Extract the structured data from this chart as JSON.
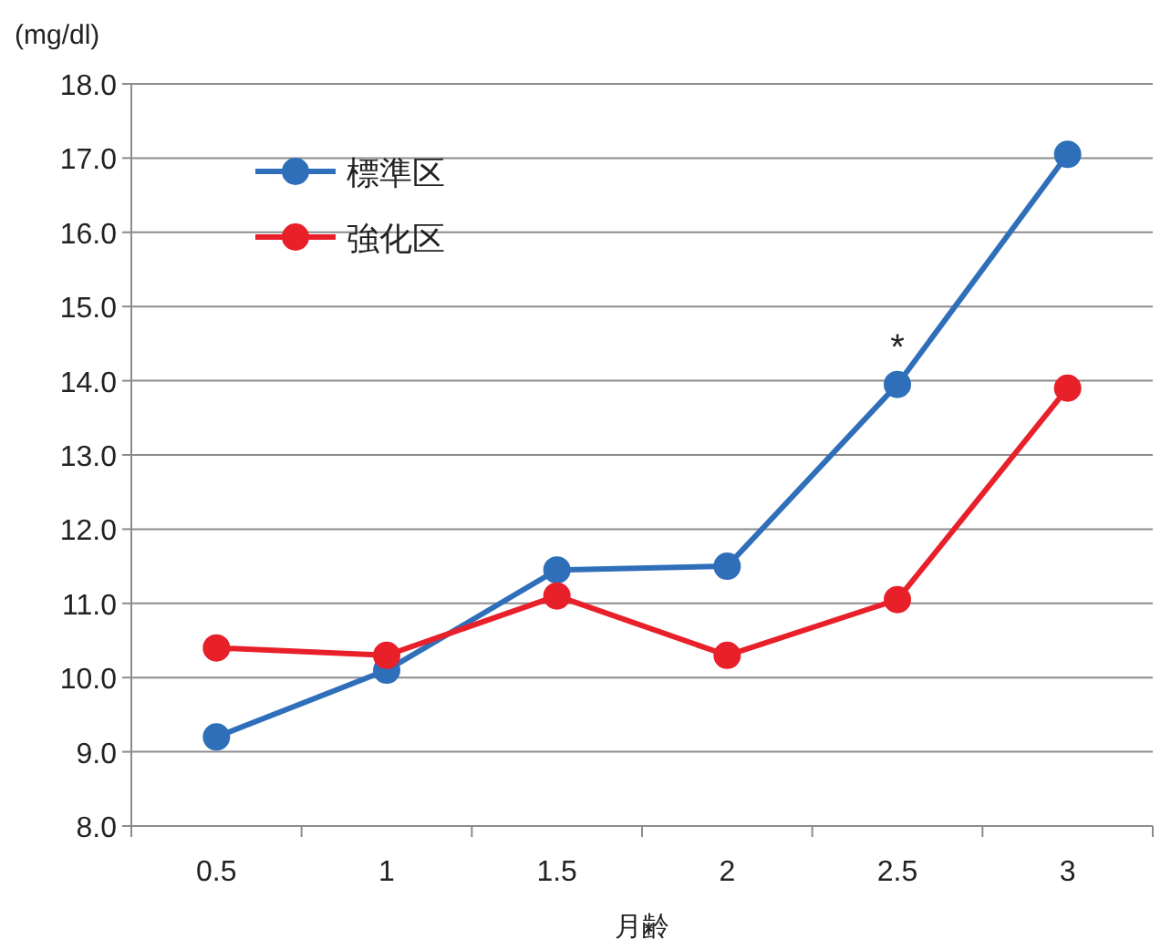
{
  "chart_data": {
    "type": "line",
    "ylabel": "(mg/dl)",
    "xlabel": "月齢",
    "categories": [
      "0.5",
      "1",
      "1.5",
      "2",
      "2.5",
      "3"
    ],
    "series": [
      {
        "name": "標準区",
        "color": "#2f6fba",
        "values": [
          9.2,
          10.1,
          11.45,
          11.5,
          13.95,
          17.05
        ]
      },
      {
        "name": "強化区",
        "color": "#e8202a",
        "values": [
          10.4,
          10.3,
          11.1,
          10.3,
          11.05,
          13.9
        ]
      }
    ],
    "ylim": [
      8,
      18
    ],
    "yticks": [
      {
        "value": 8,
        "label": "8.0"
      },
      {
        "value": 9,
        "label": "9.0"
      },
      {
        "value": 10,
        "label": "10.0"
      },
      {
        "value": 11,
        "label": "11.0"
      },
      {
        "value": 12,
        "label": "12.0"
      },
      {
        "value": 13,
        "label": "13.0"
      },
      {
        "value": 14,
        "label": "14.0"
      },
      {
        "value": 15,
        "label": "15.0"
      },
      {
        "value": 16,
        "label": "16.0"
      },
      {
        "value": 17,
        "label": "17.0"
      },
      {
        "value": 18,
        "label": "18.0"
      }
    ],
    "grid": "y",
    "legend": "top left",
    "marker": "circle",
    "line_style": "solid",
    "annotations": [
      {
        "text": "*",
        "x": "2.5",
        "y": 13.95
      }
    ]
  }
}
